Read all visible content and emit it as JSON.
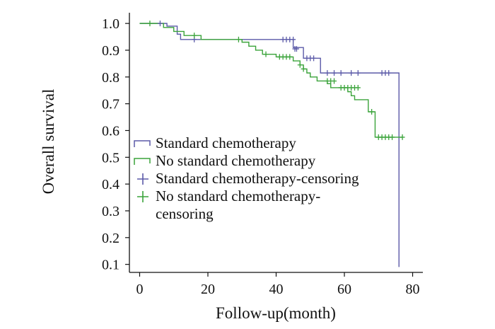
{
  "chart_data": {
    "type": "line",
    "subtype": "kaplan-meier step",
    "title": "",
    "xlabel": "Follow-up(month)",
    "ylabel": "Overall survival",
    "xlim": [
      -3,
      83
    ],
    "ylim": [
      0.07,
      1.04
    ],
    "xticks": [
      0,
      20,
      40,
      60,
      80
    ],
    "xtick_labels": [
      "0",
      "20",
      "40",
      "60",
      "80"
    ],
    "yticks": [
      0.1,
      0.2,
      0.3,
      0.4,
      0.5,
      0.6,
      0.7,
      0.8,
      0.9,
      1.0
    ],
    "ytick_labels": [
      "0.1",
      "0.2",
      "0.3",
      "0.4",
      "0.5",
      "0.6",
      "0.7",
      "0.8",
      "0.9",
      "1.0"
    ],
    "grid": false,
    "legend_position": "center-left",
    "series": [
      {
        "name": "Standard chemotherapy",
        "color": "#5b5aa8",
        "steps": [
          [
            0,
            1.0
          ],
          [
            8,
            0.99
          ],
          [
            11,
            0.96
          ],
          [
            12,
            0.94
          ],
          [
            43,
            0.94
          ],
          [
            45,
            0.91
          ],
          [
            48,
            0.87
          ],
          [
            53,
            0.815
          ],
          [
            76,
            0.815
          ],
          [
            76,
            0.09
          ]
        ]
      },
      {
        "name": "No standard chemotherapy",
        "color": "#3aa33a",
        "steps": [
          [
            0,
            1.0
          ],
          [
            7,
            0.985
          ],
          [
            10,
            0.97
          ],
          [
            13,
            0.955
          ],
          [
            18,
            0.94
          ],
          [
            30,
            0.93
          ],
          [
            32,
            0.915
          ],
          [
            34,
            0.9
          ],
          [
            36,
            0.885
          ],
          [
            40,
            0.875
          ],
          [
            45,
            0.86
          ],
          [
            47,
            0.845
          ],
          [
            48,
            0.83
          ],
          [
            49,
            0.815
          ],
          [
            50,
            0.8
          ],
          [
            52,
            0.785
          ],
          [
            55,
            0.775
          ],
          [
            56,
            0.76
          ],
          [
            61,
            0.745
          ],
          [
            62,
            0.73
          ],
          [
            63,
            0.715
          ],
          [
            67,
            0.67
          ],
          [
            69,
            0.575
          ],
          [
            77,
            0.575
          ]
        ]
      },
      {
        "name": "Standard chemotherapy-censoring",
        "color": "#5b5aa8",
        "marker": "plus",
        "points": [
          [
            6,
            1.0
          ],
          [
            16,
            0.94
          ],
          [
            42,
            0.94
          ],
          [
            43,
            0.94
          ],
          [
            44,
            0.94
          ],
          [
            45,
            0.94
          ],
          [
            45.5,
            0.905
          ],
          [
            46,
            0.905
          ],
          [
            49,
            0.87
          ],
          [
            50,
            0.87
          ],
          [
            51,
            0.87
          ],
          [
            55,
            0.815
          ],
          [
            57,
            0.815
          ],
          [
            59,
            0.815
          ],
          [
            62,
            0.815
          ],
          [
            64,
            0.815
          ],
          [
            71,
            0.815
          ],
          [
            72,
            0.815
          ],
          [
            73,
            0.815
          ]
        ]
      },
      {
        "name": "No standard chemotherapy-censoring",
        "color": "#3aa33a",
        "marker": "plus",
        "points": [
          [
            3,
            1.0
          ],
          [
            16,
            0.955
          ],
          [
            29,
            0.94
          ],
          [
            37,
            0.885
          ],
          [
            41,
            0.875
          ],
          [
            42,
            0.875
          ],
          [
            43,
            0.875
          ],
          [
            44,
            0.875
          ],
          [
            47,
            0.845
          ],
          [
            48,
            0.83
          ],
          [
            55,
            0.785
          ],
          [
            56,
            0.785
          ],
          [
            57,
            0.785
          ],
          [
            59,
            0.76
          ],
          [
            60,
            0.76
          ],
          [
            61,
            0.76
          ],
          [
            62,
            0.76
          ],
          [
            63,
            0.76
          ],
          [
            64,
            0.76
          ],
          [
            68,
            0.67
          ],
          [
            70,
            0.575
          ],
          [
            71,
            0.575
          ],
          [
            72,
            0.575
          ],
          [
            73,
            0.575
          ],
          [
            74,
            0.575
          ],
          [
            77,
            0.575
          ]
        ]
      }
    ],
    "legend": [
      {
        "label_lines": [
          "Standard chemotherapy"
        ],
        "symbol": "step",
        "color": "#5b5aa8"
      },
      {
        "label_lines": [
          "No standard chemotherapy"
        ],
        "symbol": "step",
        "color": "#3aa33a"
      },
      {
        "label_lines": [
          "Standard chemotherapy-censoring"
        ],
        "symbol": "plus",
        "color": "#5b5aa8"
      },
      {
        "label_lines": [
          "No standard chemotherapy-",
          "censoring"
        ],
        "symbol": "plus",
        "color": "#3aa33a"
      }
    ]
  }
}
